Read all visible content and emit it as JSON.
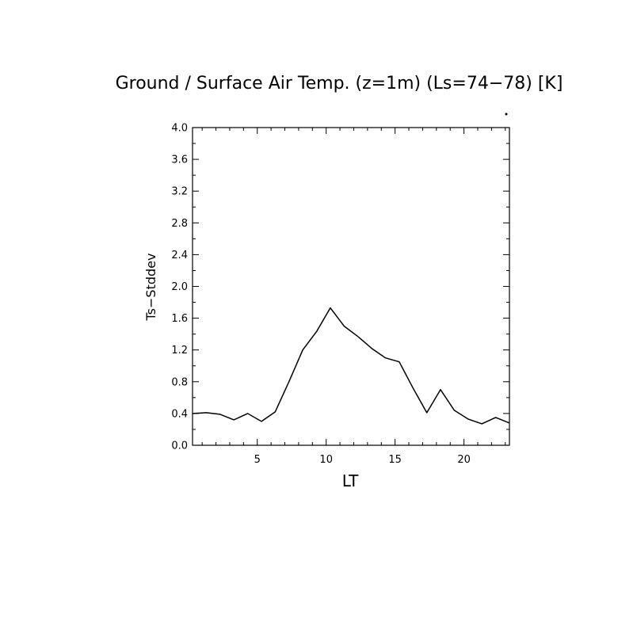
{
  "chart_data": {
    "type": "line",
    "title": "Ground / Surface Air Temp. (z=1m) (Ls=74−78) [K]",
    "xlabel": "LT",
    "ylabel": "Ts−Stddev",
    "xlim": [
      0.3,
      23.3
    ],
    "ylim": [
      0,
      4.0
    ],
    "xticks": [
      5,
      10,
      15,
      20
    ],
    "yticks": [
      0.0,
      0.4,
      0.8,
      1.2,
      1.6,
      2.0,
      2.4,
      2.8,
      3.2,
      3.6,
      4.0
    ],
    "ytick_labels": [
      "0.0",
      "0.4",
      "0.8",
      "1.2",
      "1.6",
      "2.0",
      "2.4",
      "2.8",
      "3.2",
      "3.6",
      "4.0"
    ],
    "grid": false,
    "series": [
      {
        "color": "#000000",
        "x": [
          0.3,
          1.3,
          2.3,
          3.3,
          4.3,
          5.3,
          6.3,
          7.3,
          8.3,
          9.3,
          10.3,
          11.3,
          12.3,
          13.3,
          14.3,
          15.3,
          16.3,
          17.3,
          18.3,
          19.3,
          20.3,
          21.3,
          22.3,
          23.3
        ],
        "y": [
          0.4,
          0.41,
          0.39,
          0.32,
          0.4,
          0.3,
          0.42,
          0.8,
          1.2,
          1.43,
          1.73,
          1.5,
          1.37,
          1.22,
          1.1,
          1.05,
          0.72,
          0.41,
          0.7,
          0.44,
          0.33,
          0.27,
          0.35,
          0.28
        ]
      }
    ]
  }
}
